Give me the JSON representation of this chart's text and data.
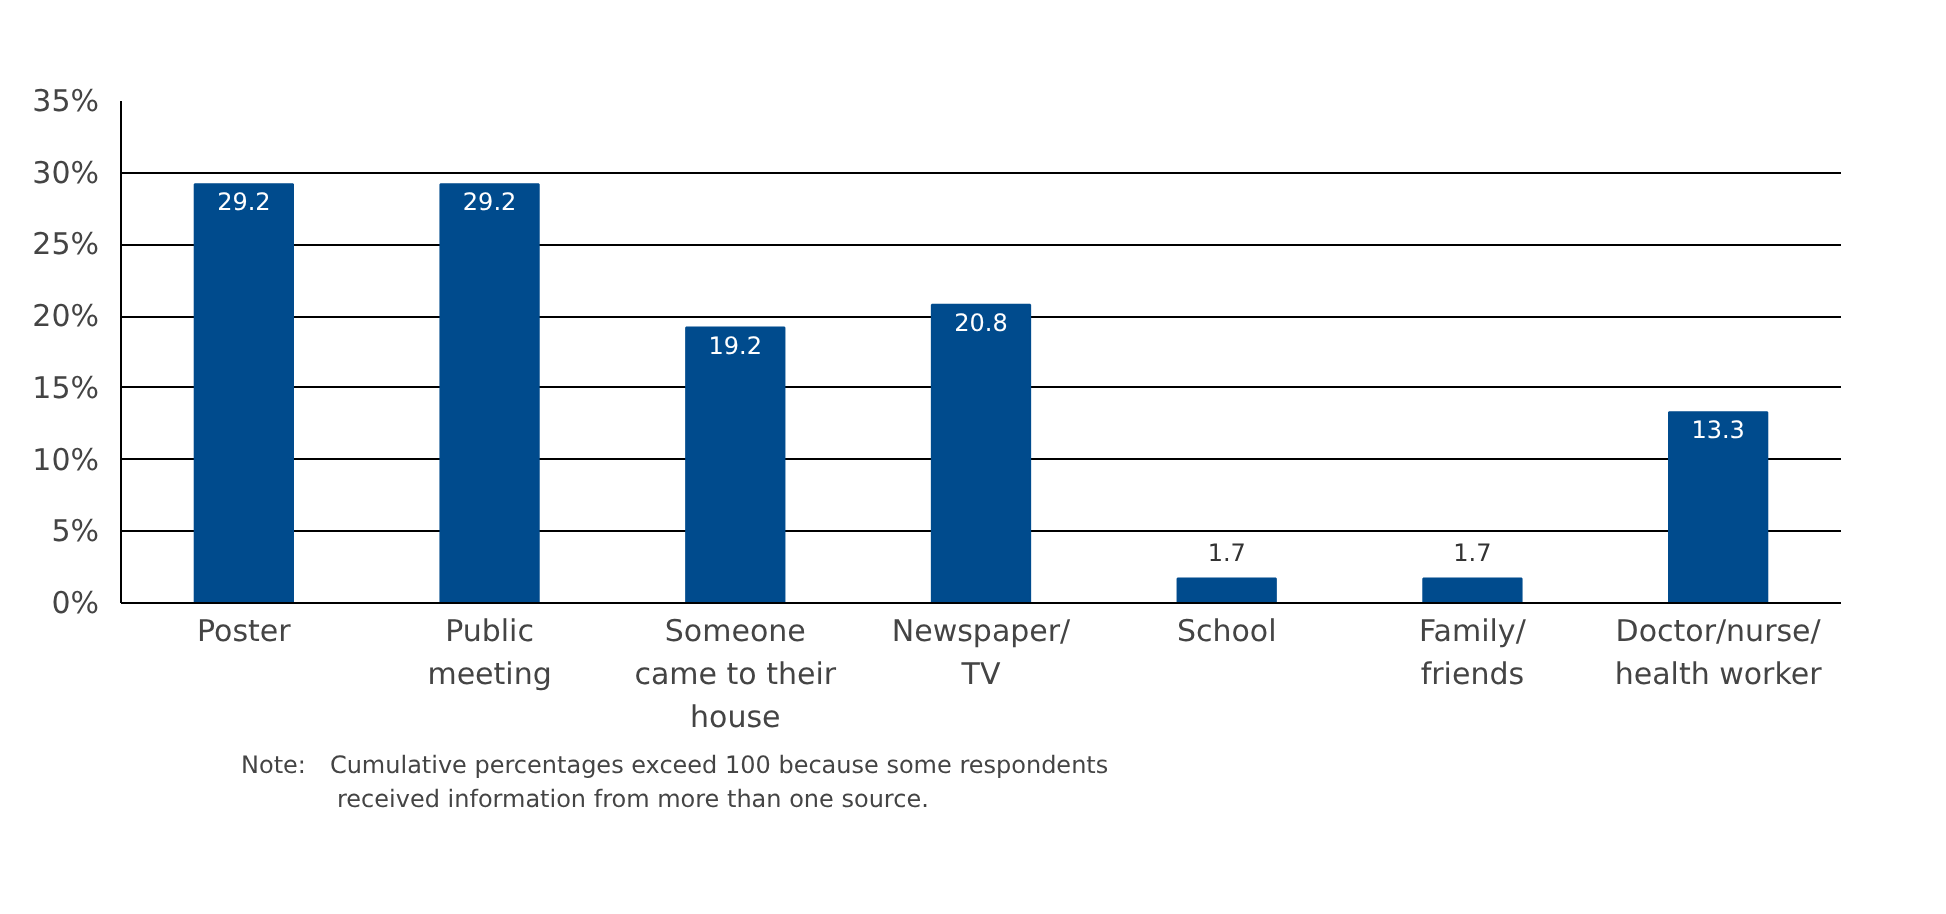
{
  "chart_data": {
    "type": "bar",
    "categories": [
      "Poster",
      "Public\nmeeting",
      "Someone\ncame to their\nhouse",
      "Newspaper/\nTV",
      "School",
      "Family/\nfriends",
      "Doctor/nurse/\nhealth worker"
    ],
    "values": [
      29.2,
      29.2,
      19.2,
      20.8,
      1.7,
      1.7,
      13.3
    ],
    "color": "#004b8d",
    "data_labels": true,
    "ylim": [
      0,
      35
    ],
    "yticks": [
      {
        "value": 0,
        "label": "0%"
      },
      {
        "value": 5,
        "label": "5%"
      },
      {
        "value": 10,
        "label": "10%"
      },
      {
        "value": 15,
        "label": "15%"
      },
      {
        "value": 20,
        "label": "20%"
      },
      {
        "value": 25,
        "label": "25%"
      },
      {
        "value": 30,
        "label": "30%"
      },
      {
        "value": 35,
        "label": "35%"
      }
    ],
    "grid": "y",
    "annotations": [
      "Note: Cumulative percentages exceed 100 because some respondents\n    received information from more than one source."
    ]
  }
}
